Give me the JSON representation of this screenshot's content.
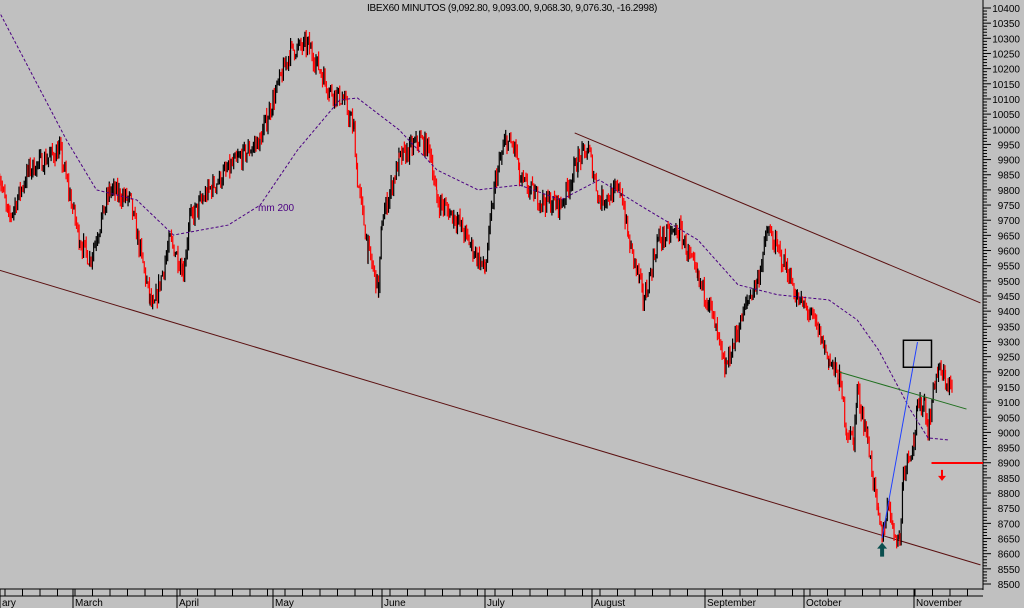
{
  "chart_data": {
    "type": "ohlc-bar",
    "title": "IBEX60 MINUTOS (9,092.80, 9,093.00, 9,068.30, 9,076.30, -16.2998)",
    "ylim": [
      8500,
      10400
    ],
    "y_tick_step": 50,
    "y_axis_position": "right",
    "x_tick_labels": [
      "ary",
      "March",
      "April",
      "May",
      "June",
      "July",
      "August",
      "September",
      "October",
      "November"
    ],
    "grid": false,
    "background_color": "#c0c0c0",
    "up_color": "#000000",
    "down_color": "#ff0000",
    "price_path": [
      [
        "02-07",
        9866
      ],
      [
        "02-10",
        9701
      ],
      [
        "02-16",
        9866
      ],
      [
        "02-25",
        9932
      ],
      [
        "03-03",
        9635
      ],
      [
        "03-06",
        9569
      ],
      [
        "03-12",
        9800
      ],
      [
        "03-18",
        9767
      ],
      [
        "03-24",
        9437
      ],
      [
        "03-25",
        9404
      ],
      [
        "03-30",
        9635
      ],
      [
        "04-03",
        9536
      ],
      [
        "04-05",
        9701
      ],
      [
        "04-11",
        9800
      ],
      [
        "04-20",
        9899
      ],
      [
        "04-27",
        9965
      ],
      [
        "05-01",
        10097
      ],
      [
        "05-06",
        10261
      ],
      [
        "05-11",
        10278
      ],
      [
        "05-17",
        10130
      ],
      [
        "05-21",
        10097
      ],
      [
        "05-24",
        9998
      ],
      [
        "05-25",
        9833
      ],
      [
        "05-28",
        9602
      ],
      [
        "05-31",
        9470
      ],
      [
        "06-01",
        9701
      ],
      [
        "06-06",
        9899
      ],
      [
        "06-12",
        9965
      ],
      [
        "06-15",
        9932
      ],
      [
        "06-17",
        9767
      ],
      [
        "06-23",
        9701
      ],
      [
        "06-26",
        9635
      ],
      [
        "07-01",
        9536
      ],
      [
        "07-04",
        9833
      ],
      [
        "07-07",
        9965
      ],
      [
        "07-10",
        9932
      ],
      [
        "07-11",
        9833
      ],
      [
        "07-17",
        9767
      ],
      [
        "07-23",
        9750
      ],
      [
        "07-28",
        9899
      ],
      [
        "07-31",
        9932
      ],
      [
        "08-03",
        9767
      ],
      [
        "08-09",
        9800
      ],
      [
        "08-11",
        9635
      ],
      [
        "08-14",
        9503
      ],
      [
        "08-15",
        9437
      ],
      [
        "08-16",
        9470
      ],
      [
        "08-19",
        9635
      ],
      [
        "08-25",
        9668
      ],
      [
        "08-27",
        9602
      ],
      [
        "08-30",
        9503
      ],
      [
        "09-02",
        9437
      ],
      [
        "09-05",
        9305
      ],
      [
        "09-07",
        9206
      ],
      [
        "09-11",
        9338
      ],
      [
        "09-14",
        9437
      ],
      [
        "09-17",
        9503
      ],
      [
        "09-20",
        9668
      ],
      [
        "09-23",
        9602
      ],
      [
        "09-26",
        9536
      ],
      [
        "09-29",
        9437
      ],
      [
        "10-02",
        9404
      ],
      [
        "10-05",
        9338
      ],
      [
        "10-08",
        9239
      ],
      [
        "10-11",
        9173
      ],
      [
        "10-13",
        9008
      ],
      [
        "10-15",
        8975
      ],
      [
        "10-16",
        9140
      ],
      [
        "10-19",
        8975
      ],
      [
        "10-22",
        8711
      ],
      [
        "10-23",
        8662
      ],
      [
        "10-25",
        8777
      ],
      [
        "10-26",
        8678
      ],
      [
        "10-28",
        8645
      ],
      [
        "10-29",
        8876
      ],
      [
        "11-01",
        8975
      ],
      [
        "11-02",
        9074
      ],
      [
        "11-04",
        9107
      ],
      [
        "11-05",
        9008
      ],
      [
        "11-07",
        9173
      ],
      [
        "11-08",
        9206
      ],
      [
        "11-10",
        9173
      ],
      [
        "11-12",
        9140
      ]
    ],
    "moving_average": {
      "label": "mm 200",
      "color": "#4b0082",
      "points": [
        [
          "02-07",
          10393
        ],
        [
          "02-27",
          9965
        ],
        [
          "03-08",
          9800
        ],
        [
          "03-20",
          9767
        ],
        [
          "03-31",
          9651
        ],
        [
          "04-17",
          9684
        ],
        [
          "04-27",
          9750
        ],
        [
          "05-08",
          9932
        ],
        [
          "05-20",
          10097
        ],
        [
          "05-25",
          10103
        ],
        [
          "06-06",
          9998
        ],
        [
          "06-17",
          9866
        ],
        [
          "06-29",
          9800
        ],
        [
          "07-11",
          9816
        ],
        [
          "07-23",
          9767
        ],
        [
          "08-03",
          9833
        ],
        [
          "08-14",
          9750
        ],
        [
          "08-30",
          9635
        ],
        [
          "09-11",
          9487
        ],
        [
          "09-23",
          9454
        ],
        [
          "10-08",
          9437
        ],
        [
          "10-16",
          9371
        ],
        [
          "10-22",
          9272
        ],
        [
          "10-31",
          9074
        ],
        [
          "11-05",
          8982
        ],
        [
          "11-11",
          8975
        ]
      ]
    },
    "annotations": {
      "upper_channel": {
        "color": "#5a1010",
        "from": [
          "07-27",
          9988
        ],
        "to": [
          "11-20",
          9427
        ]
      },
      "lower_channel": {
        "color": "#5a1010",
        "from": [
          "02-07",
          9536
        ],
        "to": [
          "11-20",
          8563
        ]
      },
      "green_line": {
        "color": "#207020",
        "from": [
          "10-11",
          9199
        ],
        "to": [
          "11-16",
          9077
        ]
      },
      "blue_line": {
        "color": "#2040ff",
        "from": [
          "10-23",
          8652
        ],
        "to": [
          "11-02",
          9298
        ]
      },
      "red_level": {
        "color": "#ff0000",
        "from": "11-06",
        "value": 8899
      },
      "target_box": {
        "from": [
          "10-29",
          9304
        ],
        "to": [
          "11-06",
          9215
        ]
      },
      "up_arrow": {
        "color": "#0b4f4f",
        "at": [
          "10-23",
          8610
        ]
      },
      "down_arrow": {
        "color": "#ff0000",
        "at": [
          "11-09",
          8860
        ]
      }
    }
  }
}
